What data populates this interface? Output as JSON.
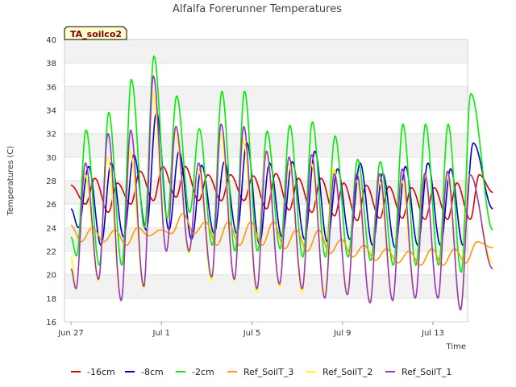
{
  "chart_data": {
    "type": "line",
    "title": "Alfalfa Forerunner Temperatures",
    "xlabel": "Time",
    "ylabel": "Temperatures (C)",
    "annotation": "TA_soilco2",
    "ylim": [
      16,
      40
    ],
    "y_ticks": [
      16,
      18,
      20,
      22,
      24,
      26,
      28,
      30,
      32,
      34,
      36,
      38,
      40
    ],
    "xlim": [
      0,
      18.9
    ],
    "x_ticks": [
      {
        "value": 0,
        "label": "Jun 27"
      },
      {
        "value": 4,
        "label": "Jul 1"
      },
      {
        "value": 8,
        "label": "Jul 5"
      },
      {
        "value": 12,
        "label": "Jul 9"
      },
      {
        "value": 16,
        "label": "Jul 13"
      }
    ],
    "grid": "horizontal bands",
    "legend_position": "bottom",
    "series": [
      {
        "name": "-16cm",
        "color": "#dd0000",
        "min": [
          26.0,
          25.3,
          26.0,
          26.3,
          26.6,
          26.3,
          26.3,
          26.3,
          25.6,
          25.5,
          25.3,
          25.0,
          24.6,
          24.8,
          24.8,
          24.7,
          24.7,
          24.7
        ],
        "max": [
          28.2,
          27.8,
          28.8,
          29.2,
          29.2,
          28.5,
          28.5,
          28.4,
          28.6,
          28.2,
          28.2,
          27.8,
          27.6,
          27.5,
          27.4,
          27.4,
          27.8,
          28.5
        ],
        "start": 27.6,
        "end": 27.0
      },
      {
        "name": "-8cm",
        "color": "#0000cc",
        "min": [
          24.0,
          22.5,
          23.2,
          23.8,
          23.8,
          23.0,
          23.5,
          23.5,
          22.6,
          23.2,
          23.0,
          22.8,
          23.0,
          22.5,
          22.3,
          22.5,
          22.5,
          22.5
        ],
        "max": [
          29.2,
          29.5,
          30.2,
          33.8,
          30.5,
          29.3,
          29.6,
          31.2,
          29.5,
          29.6,
          30.5,
          29.0,
          29.5,
          28.6,
          29.2,
          29.5,
          29.0,
          31.2
        ],
        "start": 25.6,
        "end": 25.6
      },
      {
        "name": "-2cm",
        "color": "#00ee00",
        "min": [
          21.6,
          20.8,
          20.8,
          24.0,
          24.8,
          25.3,
          22.5,
          22.0,
          22.0,
          22.2,
          21.5,
          21.5,
          21.5,
          21.2,
          20.8,
          20.8,
          20.8,
          20.2
        ],
        "max": [
          32.3,
          33.8,
          36.6,
          38.6,
          35.2,
          32.4,
          35.6,
          35.6,
          32.2,
          32.7,
          33.0,
          31.8,
          29.8,
          29.6,
          32.8,
          32.8,
          32.8,
          35.4
        ],
        "start": 23.2,
        "end": 23.8
      },
      {
        "name": "Ref_SoilT_3",
        "color": "#ff9900",
        "min": [
          22.8,
          22.8,
          22.5,
          23.3,
          23.5,
          23.5,
          22.5,
          22.5,
          22.5,
          22.2,
          22.0,
          21.8,
          21.5,
          21.2,
          21.0,
          20.8,
          20.8,
          21.0
        ],
        "max": [
          24.0,
          23.8,
          24.0,
          23.8,
          25.2,
          24.5,
          24.5,
          24.5,
          24.5,
          23.8,
          23.8,
          23.0,
          22.5,
          22.2,
          22.0,
          22.2,
          22.2,
          22.8
        ],
        "start": 24.2,
        "end": 22.3
      },
      {
        "name": "Ref_SoilT_2",
        "color": "#ffff00",
        "min": [
          19.0,
          19.5,
          17.8,
          18.8,
          22.0,
          21.8,
          19.5,
          19.5,
          18.5,
          19.0,
          18.5,
          18.5,
          18.5,
          17.8,
          17.8,
          18.0,
          18.0,
          17.2
        ],
        "max": [
          28.5,
          30.0,
          30.5,
          35.5,
          32.0,
          29.0,
          32.0,
          31.5,
          30.5,
          29.5,
          29.5,
          29.0,
          28.0,
          28.0,
          28.0,
          28.5,
          28.5,
          28.5
        ],
        "start": 21.5,
        "end": 21.0
      },
      {
        "name": "Ref_SoilT_1",
        "color": "#9933cc",
        "min": [
          18.8,
          19.6,
          17.8,
          19.0,
          22.0,
          22.0,
          19.8,
          19.6,
          18.8,
          19.2,
          18.8,
          18.0,
          18.3,
          17.6,
          17.8,
          18.0,
          18.0,
          17.0
        ],
        "max": [
          29.5,
          32.0,
          32.3,
          36.9,
          32.6,
          29.5,
          32.8,
          32.6,
          30.5,
          30.0,
          30.2,
          28.6,
          28.6,
          28.6,
          29.0,
          28.6,
          28.8,
          28.5
        ],
        "start": 20.5,
        "end": 20.5
      }
    ]
  }
}
